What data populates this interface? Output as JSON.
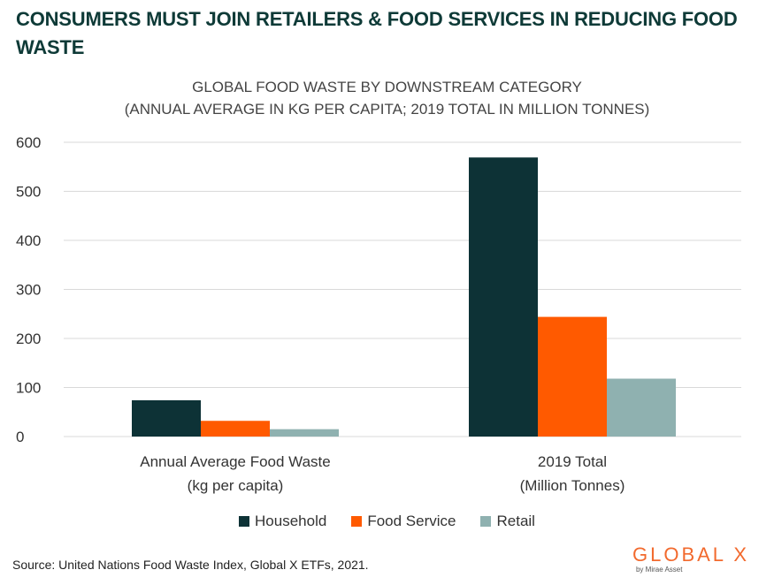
{
  "headline": {
    "line1": "CONSUMERS MUST JOIN RETAILERS & FOOD SERVICES IN REDUCING FOOD",
    "line2": "WASTE"
  },
  "source": "Source: United Nations Food Waste Index, Global X ETFs, 2021.",
  "logo": {
    "name": "GLOBAL X",
    "tagline": "by Mirae Asset"
  },
  "colors": {
    "household": "#0d3236",
    "food_service": "#ff5a00",
    "retail": "#8fb1b0",
    "grid": "#d9d9d9",
    "headline": "#0e3a37",
    "logo": "#f26a2e"
  },
  "chart_data": {
    "type": "bar",
    "title": "GLOBAL FOOD WASTE BY DOWNSTREAM CATEGORY",
    "subtitle": "(ANNUAL AVERAGE IN KG PER CAPITA; 2019 TOTAL IN MILLION TONNES)",
    "categories": [
      [
        "Annual Average Food Waste",
        "(kg per capita)"
      ],
      [
        "2019 Total",
        "(Million Tonnes)"
      ]
    ],
    "series": [
      {
        "name": "Household",
        "color": "#0d3236",
        "values": [
          74,
          569
        ]
      },
      {
        "name": "Food Service",
        "color": "#ff5a00",
        "values": [
          32,
          244
        ]
      },
      {
        "name": "Retail",
        "color": "#8fb1b0",
        "values": [
          15,
          118
        ]
      }
    ],
    "yticks": [
      0,
      100,
      200,
      300,
      400,
      500,
      600
    ],
    "ylim": [
      0,
      600
    ],
    "grid": true,
    "legend_position": "bottom"
  }
}
